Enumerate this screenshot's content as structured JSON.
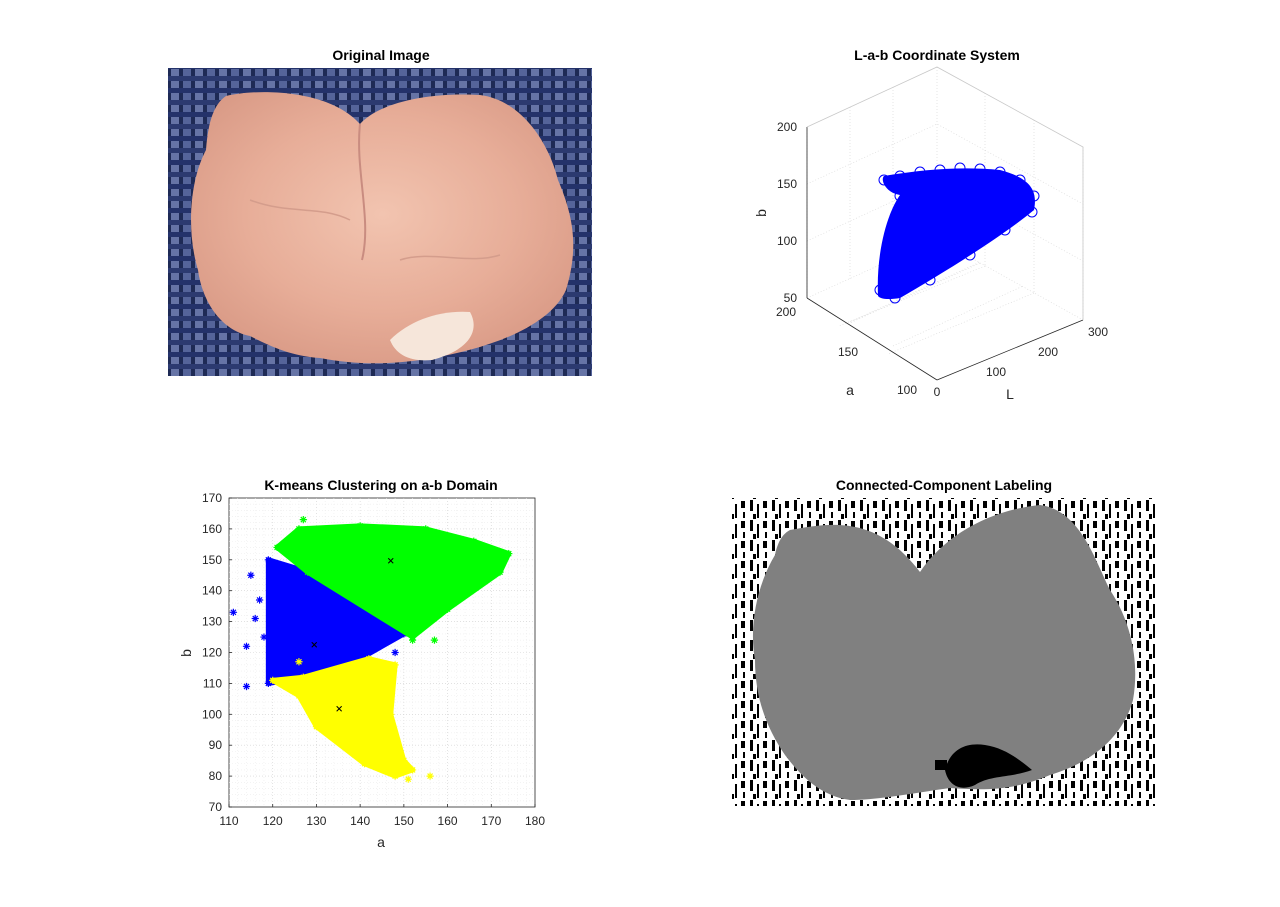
{
  "titles": {
    "original": "Original Image",
    "lab": "L-a-b Coordinate System",
    "kmeans": "K-means Clustering on a-b Domain",
    "ccl": "Connected-Component Labeling"
  },
  "colors": {
    "cluster_blue": "#0000ff",
    "cluster_green": "#00ff00",
    "cluster_yellow": "#ffff00",
    "label_gray": "#808080",
    "background_dark": "#1e2a55"
  },
  "chart_data": [
    {
      "type": "scatter",
      "title": "L-a-b Coordinate System",
      "projection": "3d",
      "xlabel": "L",
      "ylabel": "a",
      "zlabel": "b",
      "xlim": [
        0,
        300
      ],
      "ylim": [
        100,
        200
      ],
      "zlim": [
        50,
        200
      ],
      "x_ticks": [
        "0",
        "100",
        "200",
        "300"
      ],
      "y_ticks": [
        "100",
        "150",
        "200"
      ],
      "z_ticks": [
        "50",
        "100",
        "150",
        "200"
      ],
      "grid": true,
      "series": [
        {
          "marker": "o",
          "color": "#0000ff",
          "points": "dense cloud"
        }
      ]
    },
    {
      "type": "scatter",
      "title": "K-means Clustering on a-b Domain",
      "xlabel": "a",
      "ylabel": "b",
      "xlim": [
        110,
        180
      ],
      "ylim": [
        70,
        170
      ],
      "x_ticks": [
        "110",
        "120",
        "130",
        "140",
        "150",
        "160",
        "170",
        "180"
      ],
      "y_ticks": [
        "70",
        "80",
        "90",
        "100",
        "110",
        "120",
        "130",
        "140",
        "150",
        "160",
        "170"
      ],
      "grid": true,
      "series": [
        {
          "color": "#0000ff",
          "marker": "*",
          "region": [
            [
              119,
              110
            ],
            [
              119,
              150
            ],
            [
              126,
              147
            ],
            [
              150,
              126
            ],
            [
              140,
              118
            ],
            [
              128,
              112
            ]
          ],
          "outliers": [
            [
              111,
              133
            ],
            [
              114,
              109
            ],
            [
              115,
              145
            ],
            [
              114,
              122
            ],
            [
              116,
              131
            ],
            [
              117,
              137
            ],
            [
              118,
              125
            ],
            [
              142,
              122
            ],
            [
              146,
              125
            ],
            [
              148,
              120
            ]
          ]
        },
        {
          "color": "#00ff00",
          "marker": "*",
          "region": [
            [
              121,
              154
            ],
            [
              126,
              160
            ],
            [
              140,
              161
            ],
            [
              155,
              160
            ],
            [
              166,
              156
            ],
            [
              174,
              152
            ],
            [
              172,
              146
            ],
            [
              160,
              134
            ],
            [
              152,
              125
            ],
            [
              128,
              146
            ]
          ],
          "outliers": [
            [
              127,
              163
            ],
            [
              152,
              124
            ],
            [
              157,
              124
            ],
            [
              165,
              142
            ]
          ]
        },
        {
          "color": "#ffff00",
          "marker": "*",
          "region": [
            [
              120,
              111
            ],
            [
              127,
              112
            ],
            [
              142,
              118
            ],
            [
              148,
              116
            ],
            [
              147,
              100
            ],
            [
              150,
              85
            ],
            [
              152,
              82
            ],
            [
              148,
              80
            ],
            [
              141,
              84
            ],
            [
              130,
              96
            ],
            [
              126,
              106
            ]
          ],
          "outliers": [
            [
              126,
              117
            ],
            [
              147,
              113
            ],
            [
              156,
              80
            ],
            [
              151,
              79
            ]
          ]
        }
      ],
      "centroids": [
        [
          147,
          149.7
        ],
        [
          129.5,
          122.5
        ],
        [
          135.2,
          101.8
        ]
      ]
    }
  ]
}
